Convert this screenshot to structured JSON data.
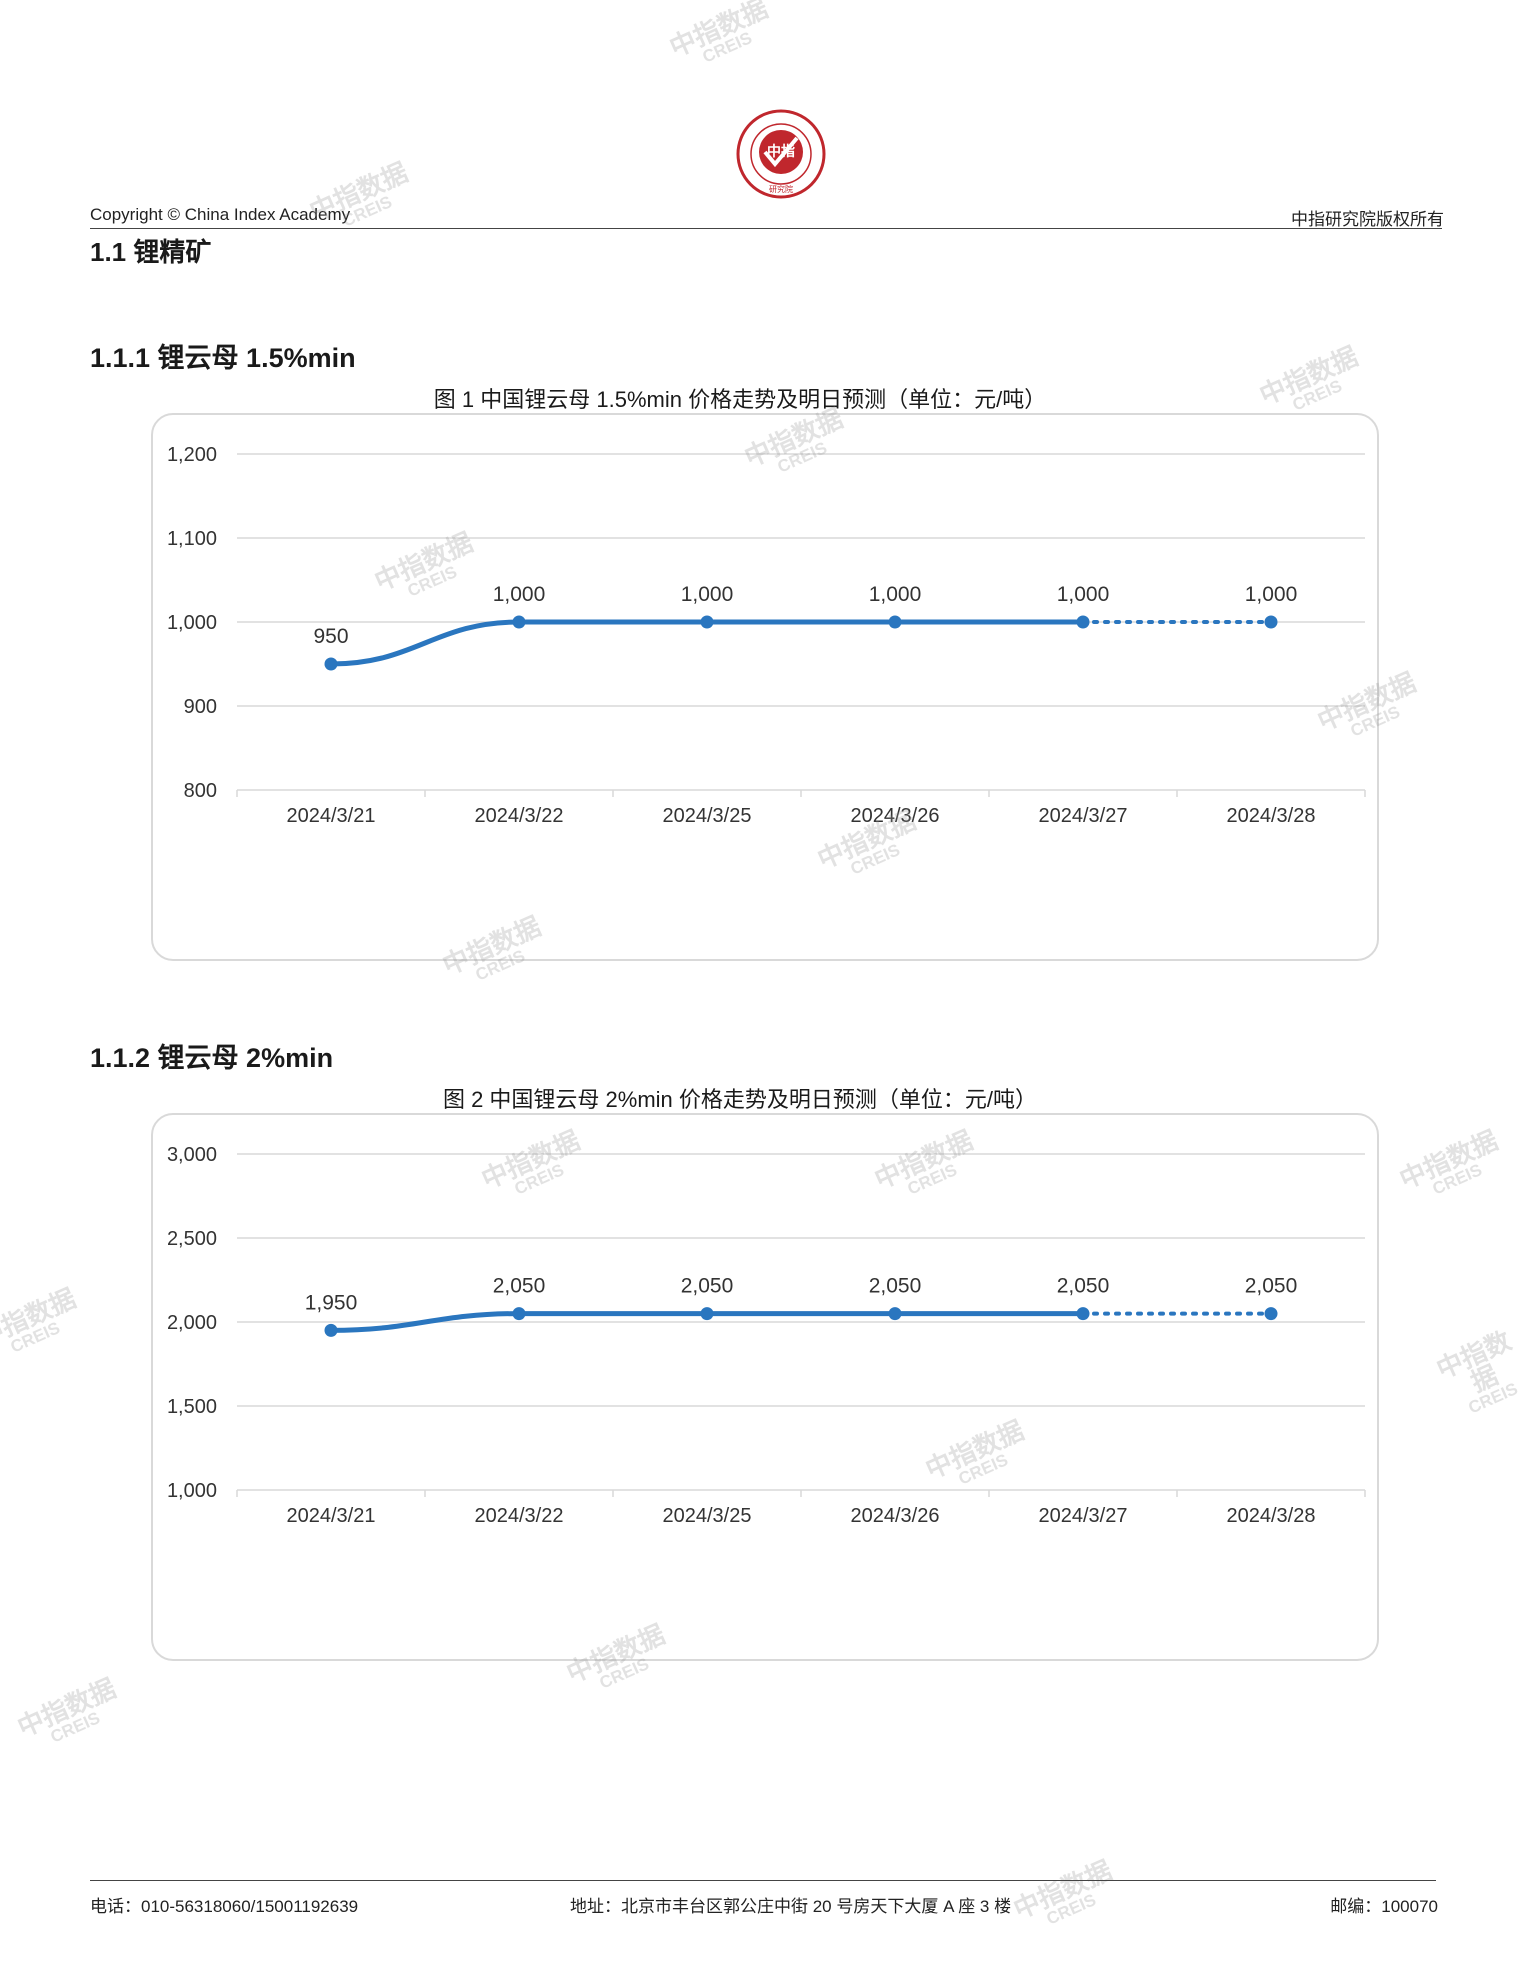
{
  "header": {
    "copyright": "Copyright © China Index Academy",
    "rights": "中指研究院版权所有",
    "logo_text": "CHINA INDEX ACADEMY",
    "logo_center": "中指",
    "logo_bottom": "研究院"
  },
  "section_title": "1.1 锂精矿",
  "charts": [
    {
      "heading": "1.1.1 锂云母 1.5%min",
      "caption": "图 1 中国锂云母 1.5%min 价格走势及明日预测（单位：元/吨）"
    },
    {
      "heading": "1.1.2 锂云母 2%min",
      "caption": "图 2 中国锂云母 2%min 价格走势及明日预测（单位：元/吨）"
    }
  ],
  "chart_data": [
    {
      "type": "line",
      "title": "图 1 中国锂云母 1.5%min 价格走势及明日预测（单位：元/吨）",
      "categories": [
        "2024/3/21",
        "2024/3/22",
        "2024/3/25",
        "2024/3/26",
        "2024/3/27",
        "2024/3/28"
      ],
      "values": [
        950,
        1000,
        1000,
        1000,
        1000,
        1000
      ],
      "labels": [
        "950",
        "1,000",
        "1,000",
        "1,000",
        "1,000",
        "1,000"
      ],
      "forecast_from_index": 4,
      "yticks": [
        800,
        900,
        1000,
        1100,
        1200
      ],
      "ytick_labels": [
        "800",
        "900",
        "1,000",
        "1,100",
        "1,200"
      ],
      "ylim": [
        800,
        1200
      ],
      "grid": true,
      "line_color": "#2a76bf"
    },
    {
      "type": "line",
      "title": "图 2 中国锂云母 2%min 价格走势及明日预测（单位：元/吨）",
      "categories": [
        "2024/3/21",
        "2024/3/22",
        "2024/3/25",
        "2024/3/26",
        "2024/3/27",
        "2024/3/28"
      ],
      "values": [
        1950,
        2050,
        2050,
        2050,
        2050,
        2050
      ],
      "labels": [
        "1,950",
        "2,050",
        "2,050",
        "2,050",
        "2,050",
        "2,050"
      ],
      "forecast_from_index": 4,
      "yticks": [
        1000,
        1500,
        2000,
        2500,
        3000
      ],
      "ytick_labels": [
        "1,000",
        "1,500",
        "2,000",
        "2,500",
        "3,000"
      ],
      "ylim": [
        1000,
        3000
      ],
      "grid": true,
      "line_color": "#2a76bf"
    }
  ],
  "watermark": {
    "cn": "中指数据",
    "en": "CREIS"
  },
  "footer": {
    "phone": "电话：010-56318060/15001192639",
    "address": "地址：北京市丰台区郭公庄中街 20 号房天下大厦 A 座 3 楼",
    "postcode": "邮编：100070"
  }
}
